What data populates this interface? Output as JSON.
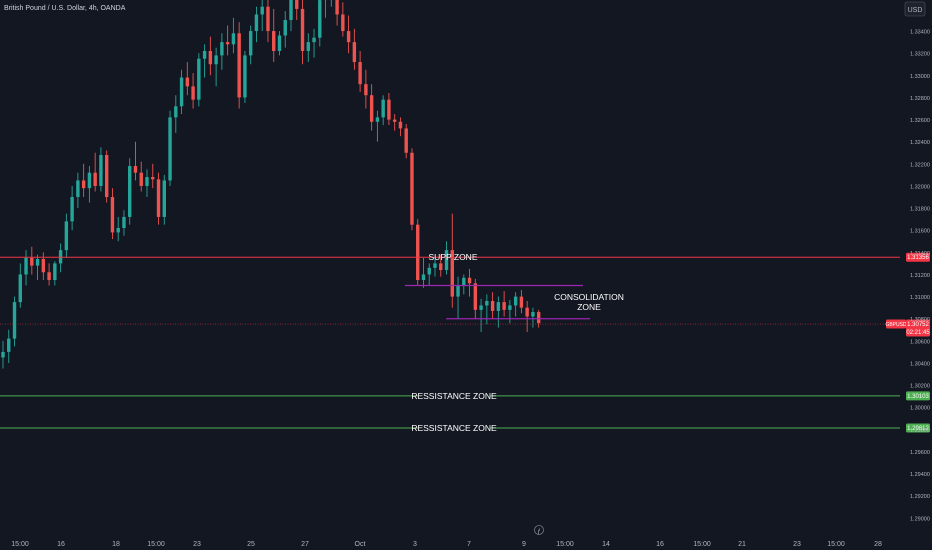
{
  "header": {
    "title": "British Pound / U.S. Dollar, 4h, OANDA"
  },
  "currency_button": {
    "label": "USD"
  },
  "colors": {
    "background": "#131722",
    "bull": "#26a69a",
    "bear": "#ef5350",
    "support_line": "#f23645",
    "resistance_line": "#4caf50",
    "consolidation_line": "#9c27b0"
  },
  "chart_data": {
    "type": "candlestick",
    "price_scale": {
      "ylim": [
        1.288,
        1.335
      ],
      "ticks": [
        "1.33400",
        "1.33200",
        "1.33000",
        "1.32800",
        "1.32600",
        "1.32400",
        "1.32200",
        "1.32000",
        "1.31800",
        "1.31600",
        "1.31400",
        "1.31200",
        "1.31000",
        "1.30800",
        "1.30600",
        "1.30400",
        "1.30200",
        "1.30000",
        "1.29800",
        "1.29600",
        "1.29400",
        "1.29200",
        "1.29000"
      ],
      "tick_values": [
        1.334,
        1.332,
        1.33,
        1.328,
        1.326,
        1.324,
        1.322,
        1.32,
        1.318,
        1.316,
        1.314,
        1.312,
        1.31,
        1.308,
        1.306,
        1.304,
        1.302,
        1.3,
        1.298,
        1.296,
        1.294,
        1.292,
        1.29
      ]
    },
    "time_axis": {
      "labels": [
        "15:00",
        "16",
        "18",
        "15:00",
        "23",
        "25",
        "27",
        "Oct",
        "3",
        "7",
        "9",
        "15:00",
        "14",
        "16",
        "15:00",
        "21",
        "23",
        "15:00",
        "28"
      ],
      "positions": [
        20,
        61,
        116,
        156,
        197,
        251,
        305,
        360,
        415,
        469,
        524,
        565,
        606,
        660,
        702,
        742,
        797,
        836,
        878
      ]
    },
    "candles": [
      [
        1.3045,
        1.306,
        1.3035,
        1.305
      ],
      [
        1.305,
        1.307,
        1.304,
        1.3062
      ],
      [
        1.3062,
        1.31,
        1.3055,
        1.3095
      ],
      [
        1.3095,
        1.313,
        1.309,
        1.312
      ],
      [
        1.312,
        1.3142,
        1.311,
        1.3135
      ],
      [
        1.3135,
        1.3145,
        1.312,
        1.3128
      ],
      [
        1.3128,
        1.3138,
        1.3115,
        1.3134
      ],
      [
        1.3134,
        1.314,
        1.3115,
        1.3122
      ],
      [
        1.3122,
        1.313,
        1.311,
        1.3115
      ],
      [
        1.3115,
        1.3132,
        1.311,
        1.313
      ],
      [
        1.313,
        1.3148,
        1.3122,
        1.3142
      ],
      [
        1.3142,
        1.3175,
        1.3135,
        1.3168
      ],
      [
        1.3168,
        1.32,
        1.316,
        1.319
      ],
      [
        1.319,
        1.3212,
        1.318,
        1.3205
      ],
      [
        1.3205,
        1.322,
        1.319,
        1.3198
      ],
      [
        1.3198,
        1.3218,
        1.3185,
        1.3212
      ],
      [
        1.3212,
        1.323,
        1.3195,
        1.32
      ],
      [
        1.32,
        1.3235,
        1.3195,
        1.3228
      ],
      [
        1.3228,
        1.3232,
        1.3185,
        1.319
      ],
      [
        1.319,
        1.3198,
        1.3152,
        1.3158
      ],
      [
        1.3158,
        1.3172,
        1.315,
        1.3162
      ],
      [
        1.3162,
        1.3178,
        1.3155,
        1.3172
      ],
      [
        1.3172,
        1.3225,
        1.3165,
        1.3218
      ],
      [
        1.3218,
        1.324,
        1.3205,
        1.3212
      ],
      [
        1.3212,
        1.3222,
        1.3195,
        1.32
      ],
      [
        1.32,
        1.3215,
        1.319,
        1.3208
      ],
      [
        1.3208,
        1.322,
        1.3198,
        1.3206
      ],
      [
        1.3206,
        1.3212,
        1.3165,
        1.3172
      ],
      [
        1.3172,
        1.321,
        1.3165,
        1.3205
      ],
      [
        1.3205,
        1.3268,
        1.32,
        1.3262
      ],
      [
        1.3262,
        1.3282,
        1.3248,
        1.3272
      ],
      [
        1.3272,
        1.3305,
        1.3265,
        1.3298
      ],
      [
        1.3298,
        1.3312,
        1.3282,
        1.329
      ],
      [
        1.329,
        1.3302,
        1.327,
        1.3278
      ],
      [
        1.3278,
        1.332,
        1.3272,
        1.3315
      ],
      [
        1.3315,
        1.3328,
        1.3298,
        1.3322
      ],
      [
        1.3322,
        1.3335,
        1.33,
        1.331
      ],
      [
        1.331,
        1.3325,
        1.329,
        1.3318
      ],
      [
        1.3318,
        1.3338,
        1.3305,
        1.333
      ],
      [
        1.333,
        1.3345,
        1.3318,
        1.3328
      ],
      [
        1.3328,
        1.3352,
        1.332,
        1.3338
      ],
      [
        1.3338,
        1.3348,
        1.327,
        1.328
      ],
      [
        1.328,
        1.3322,
        1.3275,
        1.3318
      ],
      [
        1.3318,
        1.3345,
        1.331,
        1.334
      ],
      [
        1.334,
        1.3362,
        1.333,
        1.3355
      ],
      [
        1.3355,
        1.337,
        1.334,
        1.3362
      ],
      [
        1.3362,
        1.3372,
        1.333,
        1.334
      ],
      [
        1.334,
        1.336,
        1.3312,
        1.3322
      ],
      [
        1.3322,
        1.334,
        1.3318,
        1.3336
      ],
      [
        1.3336,
        1.3358,
        1.3325,
        1.335
      ],
      [
        1.335,
        1.338,
        1.334,
        1.3372
      ],
      [
        1.3372,
        1.3385,
        1.335,
        1.336
      ],
      [
        1.336,
        1.337,
        1.331,
        1.3322
      ],
      [
        1.3322,
        1.3338,
        1.3312,
        1.333
      ],
      [
        1.333,
        1.3342,
        1.3316,
        1.3334
      ],
      [
        1.3334,
        1.3375,
        1.3326,
        1.3368
      ],
      [
        1.3368,
        1.3382,
        1.3352,
        1.3372
      ],
      [
        1.3372,
        1.3395,
        1.3362,
        1.338
      ],
      [
        1.338,
        1.3388,
        1.3345,
        1.3355
      ],
      [
        1.3355,
        1.3366,
        1.3335,
        1.334
      ],
      [
        1.334,
        1.3354,
        1.332,
        1.333
      ],
      [
        1.333,
        1.3342,
        1.3305,
        1.3312
      ],
      [
        1.3312,
        1.3322,
        1.3285,
        1.3292
      ],
      [
        1.3292,
        1.3305,
        1.327,
        1.3282
      ],
      [
        1.3282,
        1.3292,
        1.325,
        1.3258
      ],
      [
        1.3258,
        1.3268,
        1.324,
        1.3262
      ],
      [
        1.3262,
        1.3282,
        1.3255,
        1.3278
      ],
      [
        1.3278,
        1.3284,
        1.3255,
        1.326
      ],
      [
        1.326,
        1.3265,
        1.325,
        1.3258
      ],
      [
        1.3258,
        1.3262,
        1.3245,
        1.3252
      ],
      [
        1.3252,
        1.3256,
        1.3225,
        1.323
      ],
      [
        1.323,
        1.3234,
        1.316,
        1.3165
      ],
      [
        1.3165,
        1.317,
        1.311,
        1.3115
      ],
      [
        1.3115,
        1.3135,
        1.3108,
        1.312
      ],
      [
        1.312,
        1.313,
        1.311,
        1.3126
      ],
      [
        1.3126,
        1.3135,
        1.3118,
        1.313
      ],
      [
        1.313,
        1.3138,
        1.3118,
        1.3124
      ],
      [
        1.3124,
        1.315,
        1.312,
        1.3142
      ],
      [
        1.3142,
        1.3175,
        1.309,
        1.31
      ],
      [
        1.31,
        1.3118,
        1.308,
        1.311
      ],
      [
        1.311,
        1.312,
        1.3102,
        1.3117
      ],
      [
        1.3117,
        1.3125,
        1.31,
        1.3112
      ],
      [
        1.3112,
        1.3116,
        1.308,
        1.3088
      ],
      [
        1.3088,
        1.3098,
        1.3068,
        1.3092
      ],
      [
        1.3092,
        1.3102,
        1.3075,
        1.3096
      ],
      [
        1.3096,
        1.3104,
        1.308,
        1.3087
      ],
      [
        1.3087,
        1.31,
        1.3072,
        1.3095
      ],
      [
        1.3095,
        1.3105,
        1.3082,
        1.3088
      ],
      [
        1.3088,
        1.3097,
        1.3076,
        1.3092
      ],
      [
        1.3092,
        1.3104,
        1.3082,
        1.31
      ],
      [
        1.31,
        1.3106,
        1.3085,
        1.309
      ],
      [
        1.309,
        1.3096,
        1.3068,
        1.3082
      ],
      [
        1.3082,
        1.309,
        1.3072,
        1.3086
      ],
      [
        1.3086,
        1.3088,
        1.3072,
        1.3076
      ]
    ],
    "horizontal_lines": [
      {
        "name": "support",
        "price": 1.31356,
        "tag": "1.31356",
        "label": "SUPP ZONE"
      },
      {
        "name": "resistance-1",
        "price": 1.30103,
        "tag": "1.30103",
        "label": "RESSISTANCE ZONE"
      },
      {
        "name": "resistance-2",
        "price": 1.29812,
        "tag": "1.29812",
        "label": "RESSISTANCE ZONE"
      }
    ],
    "consolidation": {
      "top_price": 1.311,
      "bottom_price": 1.308,
      "label_line1": "CONSOLIDATION",
      "label_line2": "ZONE"
    },
    "current_price": {
      "price": 1.30752,
      "symbol_tag": "GBPUSD",
      "price_tag": "1.30752",
      "countdown": "02:21:45"
    },
    "watermark_symbol": "ƒ"
  }
}
